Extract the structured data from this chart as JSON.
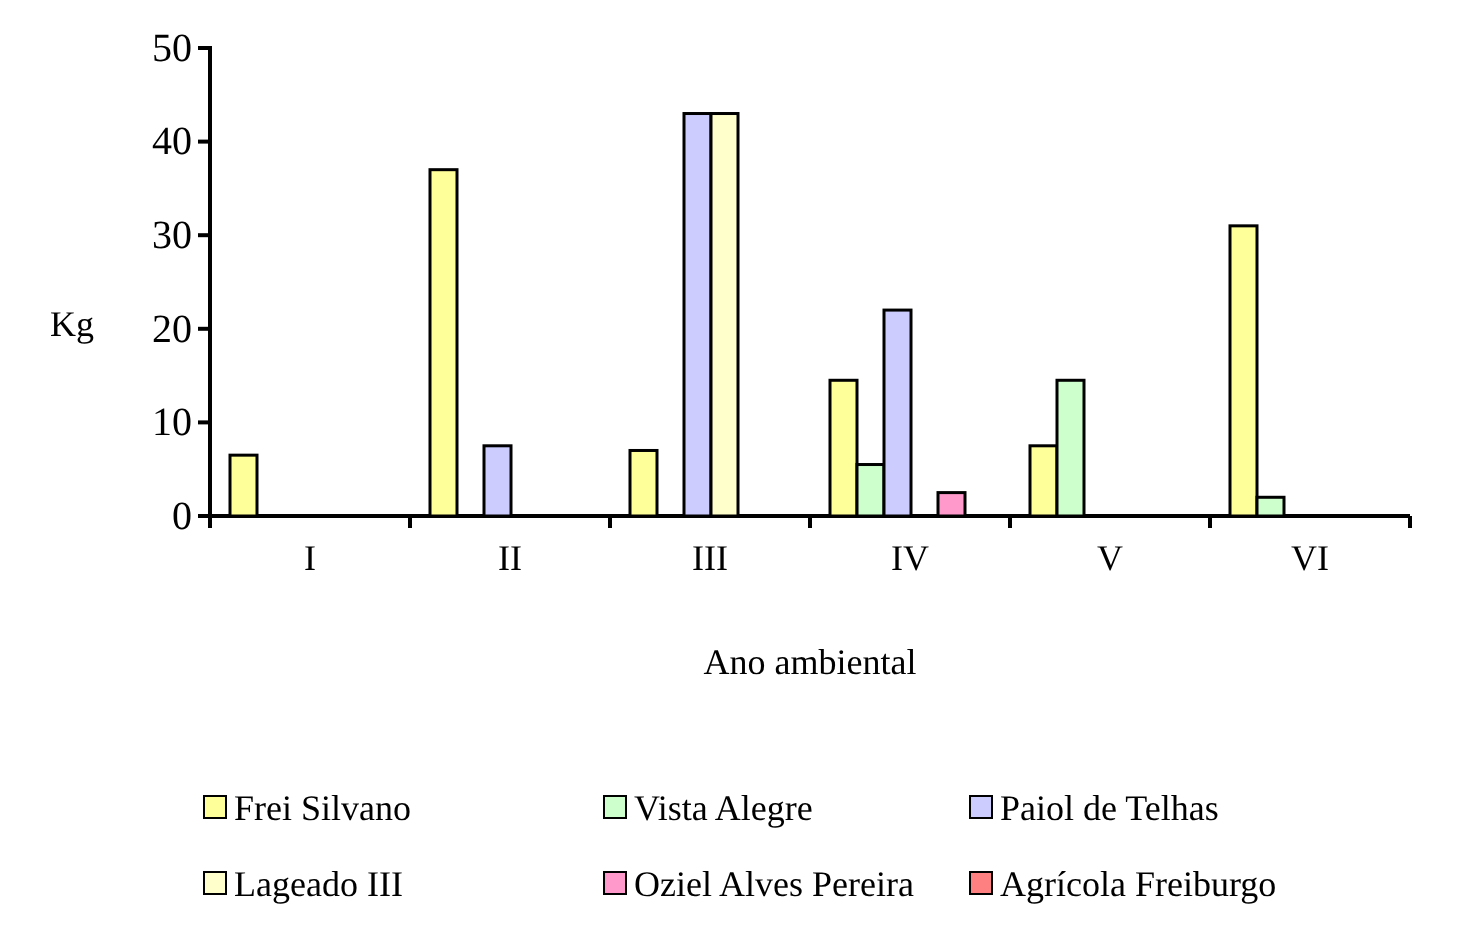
{
  "chart_data": {
    "type": "bar",
    "xlabel": "Ano ambiental",
    "ylabel": "Kg",
    "categories": [
      "I",
      "II",
      "III",
      "IV",
      "V",
      "VI"
    ],
    "series": [
      {
        "name": "Frei Silvano",
        "color": "#ffff99",
        "values": [
          6.5,
          37,
          7,
          14.5,
          7.5,
          31
        ]
      },
      {
        "name": "Vista Alegre",
        "color": "#ccffcc",
        "values": [
          0,
          0,
          0,
          5.5,
          14.5,
          2
        ]
      },
      {
        "name": "Paiol de Telhas",
        "color": "#ccccff",
        "values": [
          0,
          7.5,
          43,
          22,
          0,
          0
        ]
      },
      {
        "name": "Lageado III",
        "color": "#ffffcc",
        "values": [
          0,
          0,
          43,
          0,
          0,
          0
        ]
      },
      {
        "name": "Oziel Alves Pereira",
        "color": "#ff99cc",
        "values": [
          0,
          0,
          0,
          2.5,
          0,
          0
        ]
      },
      {
        "name": "Agrícola Freiburgo",
        "color": "#ff8080",
        "values": [
          0,
          0,
          0,
          0,
          0,
          0
        ]
      }
    ],
    "ylim": [
      0,
      50
    ],
    "yticks": [
      0,
      10,
      20,
      30,
      40,
      50
    ],
    "grid": false,
    "legend": "bottom"
  }
}
